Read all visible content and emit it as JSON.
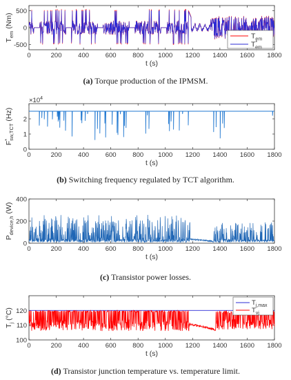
{
  "chart_data": [
    {
      "id": "a",
      "type": "line",
      "caption_label": "(a)",
      "caption_text": "Torque production of the IPMSM.",
      "xlabel": "t (s)",
      "ylabel_main": "T",
      "ylabel_sub": "em",
      "ylabel_unit": " (Nm)",
      "xlim": [
        0,
        1800
      ],
      "ylim": [
        -650,
        650
      ],
      "xticks": [
        "0",
        "200",
        "400",
        "600",
        "800",
        "1000",
        "1200",
        "1400",
        "1600",
        "1800"
      ],
      "yticks": [
        "500",
        "0",
        "-500"
      ],
      "grid": false,
      "legend_position": "bottom-right",
      "series": [
        {
          "name": "T_em",
          "legend_main": "T",
          "legend_sub": "em",
          "legend_sup": "",
          "color": "#ff0000",
          "values_desc": "fluctuating torque between about -500 and 600 Nm"
        },
        {
          "name": "T*_em",
          "legend_main": "T",
          "legend_sub": "em",
          "legend_sup": "*",
          "color": "#2b2bd6",
          "values_desc": "torque reference"
        }
      ]
    },
    {
      "id": "b",
      "type": "line",
      "caption_label": "(b)",
      "caption_text": "Switching frequency regulated by TCT algorithm.",
      "xlabel": "t (s)",
      "ylabel_main": "F",
      "ylabel_sub": "sw,TCT",
      "ylabel_sup": "*",
      "ylabel_unit": " (Hz)",
      "scale_note": "×10",
      "scale_exp": "4",
      "xlim": [
        0,
        1800
      ],
      "ylim": [
        0,
        3
      ],
      "xticks": [
        "0",
        "200",
        "400",
        "600",
        "800",
        "1000",
        "1200",
        "1400",
        "1600",
        "1800"
      ],
      "yticks": [
        "2",
        "1",
        "0"
      ],
      "grid": false,
      "series": [
        {
          "name": "F*sw,TCT",
          "color": "#1f77d0",
          "baseline": 2.5
        }
      ]
    },
    {
      "id": "c",
      "type": "line",
      "caption_label": "(c)",
      "caption_text": "Transistor power losses.",
      "xlabel": "t (s)",
      "ylabel_main": "P",
      "ylabel_sub": "device,h",
      "ylabel_unit": " (W)",
      "xlim": [
        0,
        1800
      ],
      "ylim": [
        0,
        400
      ],
      "xticks": [
        "0",
        "200",
        "400",
        "600",
        "800",
        "1000",
        "1200",
        "1400",
        "1600",
        "1800"
      ],
      "yticks": [
        "400",
        "200",
        "0"
      ],
      "grid": false,
      "series": [
        {
          "name": "P_device,h",
          "color": "#1f66b5"
        }
      ]
    },
    {
      "id": "d",
      "type": "line",
      "caption_label": "(d)",
      "caption_text": "Transistor junction temperature vs. temperature limit.",
      "xlabel": "t (s)",
      "ylabel_main": "T",
      "ylabel_sub": "j",
      "ylabel_unit": " (°C)",
      "xlim": [
        0,
        1800
      ],
      "ylim": [
        100,
        130
      ],
      "xticks": [
        "0",
        "200",
        "400",
        "600",
        "800",
        "1000",
        "1200",
        "1400",
        "1600",
        "1800"
      ],
      "yticks": [
        "120",
        "110",
        "100"
      ],
      "grid": false,
      "legend_position": "top-right",
      "series": [
        {
          "name": "T_j,max",
          "legend_main": "T",
          "legend_sub": "j,max",
          "color": "#2b2bd6",
          "constant": 120
        },
        {
          "name": "T_vj",
          "legend_main": "T",
          "legend_sub": "vj",
          "color": "#ff0000"
        }
      ]
    }
  ]
}
